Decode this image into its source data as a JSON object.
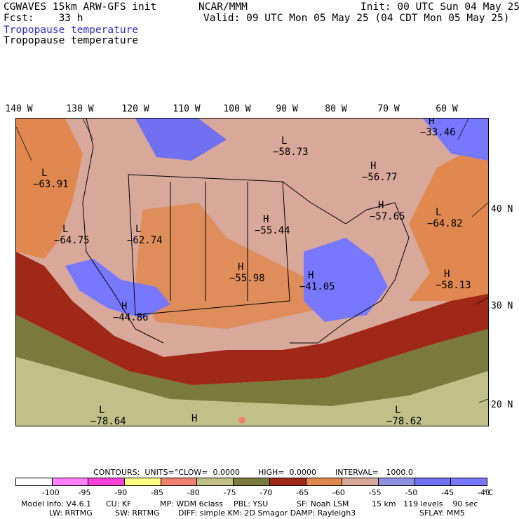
{
  "header": {
    "model_title": "CGWAVES 15km ARW-GFS init",
    "forecast": "Fcst:    33 h",
    "org": "NCAR/MMM",
    "init": "Init: 00 UTC Sun 04 May 25",
    "valid": "Valid: 09 UTC Mon 05 May 25 (04 CDT Mon 05 May 25)",
    "field_title_1": "Tropopause temperature",
    "field_title_2": "Tropopause temperature"
  },
  "longitude_labels": [
    "140 W",
    "130 W",
    "120 W",
    "110 W",
    "100 W",
    "90 W",
    "80 W",
    "70 W",
    "60 W"
  ],
  "latitude_labels": [
    "40 N",
    "30 N",
    "20 N"
  ],
  "map": {
    "labels": [
      {
        "letter": "L",
        "value": "-63.91"
      },
      {
        "letter": "L",
        "value": "-64.75"
      },
      {
        "letter": "L",
        "value": "-62.74"
      },
      {
        "letter": "H",
        "value": "-44.86"
      },
      {
        "letter": "H",
        "value": "-55.98"
      },
      {
        "letter": "H",
        "value": "-55.44"
      },
      {
        "letter": "L",
        "value": "-58.73"
      },
      {
        "letter": "H",
        "value": "-56.77"
      },
      {
        "letter": "H",
        "value": "-57.65"
      },
      {
        "letter": "L",
        "value": "-64.82"
      },
      {
        "letter": "H",
        "value": "-41.05"
      },
      {
        "letter": "H",
        "value": "-58.13"
      },
      {
        "letter": "H",
        "value": "-33.46"
      },
      {
        "letter": "L",
        "value": "-78.64"
      },
      {
        "letter": "L",
        "value": "-78.62"
      },
      {
        "letter": "H",
        "value": ""
      }
    ]
  },
  "contours": {
    "units_label": "CONTOURS:  UNITS=°C",
    "low": "LOW=  0.0000",
    "high": "HIGH=  0.0000",
    "interval": "INTERVAL=   1000.0"
  },
  "legend": {
    "colors": [
      "#ffffff",
      "#ff80ff",
      "#ff40d8",
      "#ffff80",
      "#f08070",
      "#c0c088",
      "#7a7a3c",
      "#a02818",
      "#e08850",
      "#d8a89a",
      "#9090e0",
      "#7070f0",
      "#7878ff"
    ],
    "ticks": [
      "-100",
      "-95",
      "-90",
      "-85",
      "-80",
      "-75",
      "-70",
      "-65",
      "-60",
      "-55",
      "-50",
      "-45",
      "-40"
    ],
    "unit": "°C"
  },
  "footer": {
    "line1_a": "Model Info: V4.6.1",
    "line1_b": "CU: KF",
    "line1_c": "MP: WDM 6class",
    "line1_d": "PBL: YSU",
    "line1_e": "SF: Noah LSM",
    "line1_f": "15 km   119 levels    90 sec",
    "line2_a": "LW: RRTMG",
    "line2_b": "SW: RRTMG",
    "line2_c": "DIFF: simple KM: 2D Smagor DAMP: Rayleigh3",
    "line2_d": "SFLAY: MM5"
  }
}
